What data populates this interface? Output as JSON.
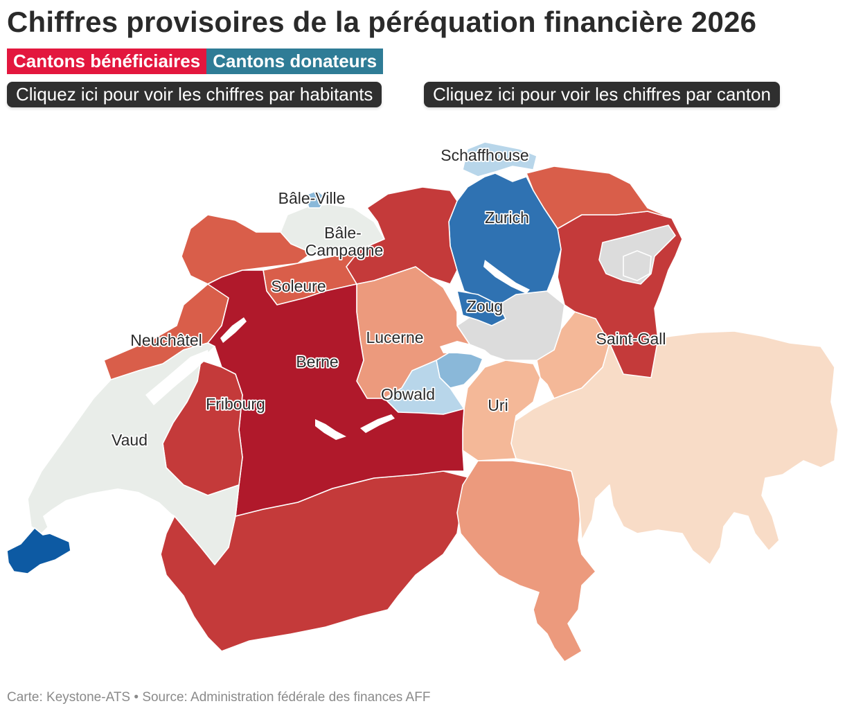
{
  "title": "Chiffres provisoires de la péréquation financière 2026",
  "legend": {
    "beneficiaries": "Cantons bénéficiaires",
    "beneficiaries_color": "#e3173e",
    "donors": "Cantons donateurs",
    "donors_color": "#2f7c96"
  },
  "buttons": {
    "per_inhabitant": "Cliquez ici pour voir les chiffres par habitants",
    "per_canton": "Cliquez ici pour voir les chiffres par canton"
  },
  "labels": {
    "schaffhouse": "Schaffhouse",
    "bale_ville": "Bâle-Ville",
    "bale_campagne_1": "Bâle-",
    "bale_campagne_2": "Campagne",
    "zurich": "Zurich",
    "soleure": "Soleure",
    "zoug": "Zoug",
    "neuchatel": "Neuchâtel",
    "lucerne": "Lucerne",
    "saint_gall": "Saint-Gall",
    "berne": "Berne",
    "fribourg": "Fribourg",
    "obwald": "Obwald",
    "uri": "Uri",
    "vaud": "Vaud"
  },
  "colors": {
    "strong_beneficiary": "#b0192b",
    "beneficiary": "#c43a3a",
    "mid_beneficiary": "#d95e4a",
    "light_beneficiary": "#ec9a7d",
    "lighter_beneficiary": "#f4b898",
    "faint_beneficiary": "#f8dcc7",
    "neutral": "#dcdcdc",
    "neutral_light": "#e9ede9",
    "donor_strong": "#0d5aa3",
    "donor": "#2f72b2",
    "donor_mid": "#8ab8d9",
    "donor_light": "#b8d6ea"
  },
  "footer": "Carte: Keystone-ATS • Source: Administration fédérale des finances AFF"
}
